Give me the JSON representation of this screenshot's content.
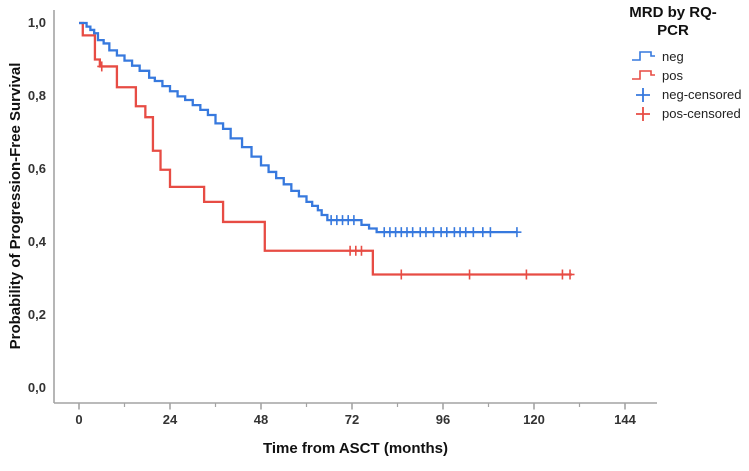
{
  "chart_data": {
    "type": "line",
    "subtype": "kaplan-meier-step-survival",
    "title": "",
    "xlabel": "Time from ASCT (months)",
    "ylabel": "Probability of Progression-Free Survival",
    "xlim": [
      -7,
      152
    ],
    "ylim": [
      0,
      1.0
    ],
    "grid": false,
    "axis_color": "#a3a3a3",
    "xticks": {
      "major": [
        0,
        24,
        48,
        72,
        96,
        120,
        144
      ],
      "minor": [
        12,
        36,
        60,
        84,
        108,
        132
      ],
      "labels": [
        "0",
        "24",
        "48",
        "72",
        "96",
        "120",
        "144"
      ]
    },
    "yticks": {
      "values": [
        0,
        0.2,
        0.4,
        0.6,
        0.8,
        1.0
      ],
      "labels": [
        "0,0",
        "0,2",
        "0,4",
        "0,6",
        "0,8",
        "1,0"
      ]
    },
    "legend": {
      "title": "MRD by RQ-PCR",
      "position": "right-outside",
      "items": [
        {
          "label": "neg",
          "symbol": "step-line",
          "color": "#3779DE"
        },
        {
          "label": "pos",
          "symbol": "step-line",
          "color": "#E74C44"
        },
        {
          "label": "neg-censored",
          "symbol": "plus",
          "color": "#3779DE"
        },
        {
          "label": "pos-censored",
          "symbol": "plus",
          "color": "#E74C44"
        }
      ]
    },
    "series": [
      {
        "name": "pos",
        "color": "#E74C44",
        "end_time": 130,
        "steps": [
          [
            0,
            1.0
          ],
          [
            1,
            0.966
          ],
          [
            4.2,
            0.9
          ],
          [
            5.5,
            0.881
          ],
          [
            10,
            0.824
          ],
          [
            15,
            0.772
          ],
          [
            17.5,
            0.742
          ],
          [
            19.5,
            0.65
          ],
          [
            21.5,
            0.598
          ],
          [
            24,
            0.551
          ],
          [
            33,
            0.51
          ],
          [
            38,
            0.455
          ],
          [
            49,
            0.376
          ],
          [
            77.5,
            0.311
          ]
        ],
        "censored_times": [
          6,
          71.5,
          73,
          74.5,
          85,
          103,
          118,
          127.5,
          129.5
        ]
      },
      {
        "name": "neg",
        "color": "#3779DE",
        "end_time": 115.5,
        "steps": [
          [
            0,
            1.0
          ],
          [
            2,
            0.99
          ],
          [
            3,
            0.981
          ],
          [
            4,
            0.972
          ],
          [
            5,
            0.953
          ],
          [
            6.5,
            0.944
          ],
          [
            8,
            0.925
          ],
          [
            10,
            0.911
          ],
          [
            12,
            0.897
          ],
          [
            14,
            0.883
          ],
          [
            16,
            0.869
          ],
          [
            18.5,
            0.85
          ],
          [
            20,
            0.841
          ],
          [
            22,
            0.827
          ],
          [
            24,
            0.813
          ],
          [
            26,
            0.799
          ],
          [
            28,
            0.789
          ],
          [
            30,
            0.775
          ],
          [
            32,
            0.762
          ],
          [
            34,
            0.748
          ],
          [
            36,
            0.725
          ],
          [
            38,
            0.71
          ],
          [
            40,
            0.684
          ],
          [
            43,
            0.66
          ],
          [
            45.5,
            0.634
          ],
          [
            48,
            0.61
          ],
          [
            50,
            0.592
          ],
          [
            52,
            0.575
          ],
          [
            54,
            0.558
          ],
          [
            56,
            0.54
          ],
          [
            58,
            0.525
          ],
          [
            60,
            0.51
          ],
          [
            61.5,
            0.499
          ],
          [
            63,
            0.487
          ],
          [
            64,
            0.474
          ],
          [
            65.5,
            0.46
          ],
          [
            74.5,
            0.447
          ],
          [
            76.5,
            0.437
          ],
          [
            78.5,
            0.427
          ]
        ],
        "censored_times": [
          66.5,
          68,
          69.5,
          71,
          72.5,
          80.5,
          82,
          83.5,
          85,
          86.5,
          88,
          90,
          91.5,
          93.5,
          95.5,
          97,
          99,
          100.5,
          102,
          104,
          106.5,
          108.5,
          115.5
        ]
      }
    ]
  }
}
